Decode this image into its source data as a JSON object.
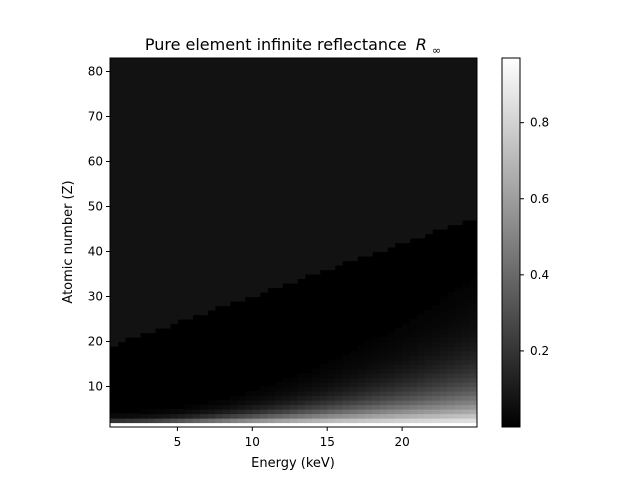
{
  "chart_data": {
    "type": "heatmap",
    "title": "Pure element infinite reflectance",
    "title_symbol": "R",
    "title_subscript": "∞",
    "xlabel": "Energy (keV)",
    "ylabel": "Atomic number (Z)",
    "xlim": [
      0.5,
      25
    ],
    "ylim": [
      1,
      83
    ],
    "x_ticks": [
      5,
      10,
      15,
      20
    ],
    "y_ticks": [
      10,
      20,
      30,
      40,
      50,
      60,
      70,
      80
    ],
    "colormap": "gray",
    "color_range": [
      0,
      0.97
    ],
    "colorbar_ticks": [
      0.2,
      0.4,
      0.6,
      0.8
    ],
    "grid": false,
    "colors": {
      "high": "#ffffff",
      "low": "#000000",
      "edge_band": "#1a1a1a"
    }
  }
}
